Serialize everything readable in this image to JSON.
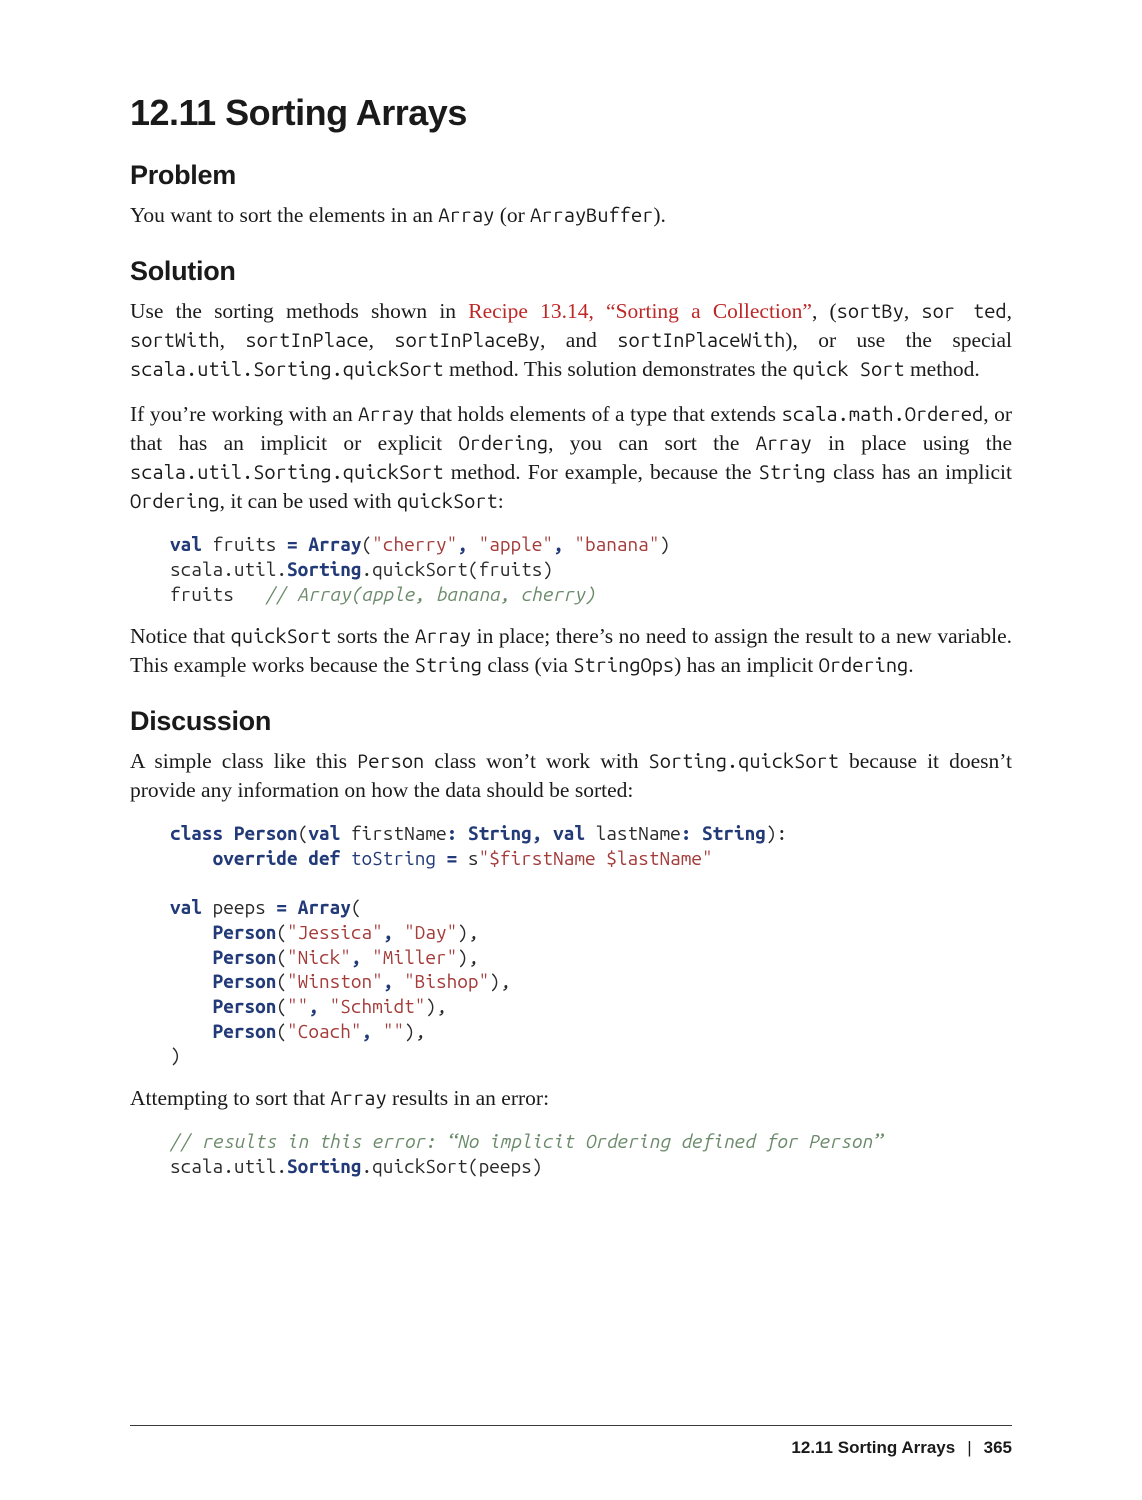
{
  "headings": {
    "main": "12.11 Sorting Arrays",
    "problem": "Problem",
    "solution": "Solution",
    "discussion": "Discussion"
  },
  "problem": {
    "p1_pre": "You want to sort the elements in an ",
    "p1_code1": "Array",
    "p1_mid": " (or ",
    "p1_code2": "ArrayBuffer",
    "p1_post": ")."
  },
  "solution": {
    "p1_a": "Use the sorting methods shown in ",
    "p1_link": "Recipe 13.14, “Sorting a Collection”",
    "p1_b": ", (",
    "p1_c1": "sortBy",
    "p1_c2": ", ",
    "p1_c3": "sor ted",
    "p1_c4": ", ",
    "p1_c5": "sortWith",
    "p1_c6": ", ",
    "p1_c7": "sortInPlace",
    "p1_c8": ", ",
    "p1_c9": "sortInPlaceBy",
    "p1_c10": ", and ",
    "p1_c11": "sortInPlaceWith",
    "p1_d": "), or use the spe­cial ",
    "p1_c12": "scala.util.Sorting.quickSort",
    "p1_e": " method. This solution demonstrates the ",
    "p1_c13": "quick Sort",
    "p1_f": " method.",
    "p2_a": "If you’re working with an ",
    "p2_c1": "Array",
    "p2_b": " that holds elements of a type that extends ",
    "p2_c2": "scala.math.Ordered",
    "p2_c": ", or that has an implicit or explicit ",
    "p2_c3": "Ordering",
    "p2_d": ", you can sort the ",
    "p2_c4": "Array",
    "p2_e": " in place using the ",
    "p2_c5": "scala.util.Sorting.quickSort",
    "p2_f": " method. For example, because the ",
    "p2_c6": "String",
    "p2_g": " class has an implicit ",
    "p2_c7": "Ordering",
    "p2_h": ", it can be used with ",
    "p2_c8": "quickSort",
    "p2_i": ":",
    "p3_a": "Notice that ",
    "p3_c1": "quickSort",
    "p3_b": " sorts the ",
    "p3_c2": "Array",
    "p3_c": " in place; there’s no need to assign the result to a new variable. This example works because the ",
    "p3_c3": "String",
    "p3_d": " class (via ",
    "p3_c4": "StringOps",
    "p3_e": ") has an implicit ",
    "p3_c5": "Ordering",
    "p3_f": "."
  },
  "discussion": {
    "p1_a": "A simple class like this ",
    "p1_c1": "Person",
    "p1_b": " class won’t work with ",
    "p1_c2": "Sorting.quickSort",
    "p1_c": " because it doesn’t provide any information on how the data should be sorted:",
    "p2_a": "Attempting to sort that ",
    "p2_c1": "Array",
    "p2_b": " results in an error:"
  },
  "code": {
    "block1": {
      "l1_kw1": "val",
      "l1_sp1": " fruits ",
      "l1_pu1": "=",
      "l1_sp2": " ",
      "l1_tp1": "Array",
      "l1_op": "(",
      "l1_s1": "\"cherry\"",
      "l1_c1": ",",
      "l1_sp3": " ",
      "l1_s2": "\"apple\"",
      "l1_c2": ",",
      "l1_sp4": " ",
      "l1_s3": "\"banana\"",
      "l1_cp": ")",
      "l2_a": "scala.util.",
      "l2_b": "Sorting",
      "l2_c": ".quickSort(fruits)",
      "l3_a": "fruits   ",
      "l3_cm": "// Array(apple, banana, cherry)"
    },
    "block2": {
      "l1_kw1": "class",
      "l1_sp1": " ",
      "l1_tp1": "Person",
      "l1_op": "(",
      "l1_kw2": "val",
      "l1_sp2": " firstName",
      "l1_pu1": ":",
      "l1_sp3": " ",
      "l1_tp2": "String",
      "l1_pu2": ",",
      "l1_sp4": " ",
      "l1_kw3": "val",
      "l1_sp5": " lastName",
      "l1_pu3": ":",
      "l1_sp6": " ",
      "l1_tp3": "String",
      "l1_cp": "):",
      "l2_indent": "    ",
      "l2_kw1": "override",
      "l2_sp1": " ",
      "l2_kw2": "def",
      "l2_sp2": " ",
      "l2_fn": "toString",
      "l2_sp3": " ",
      "l2_pu1": "=",
      "l2_sp4": " s",
      "l2_s1": "\"$firstName $lastName\"",
      "l4_kw1": "val",
      "l4_sp1": " peeps ",
      "l4_pu1": "=",
      "l4_sp2": " ",
      "l4_tp1": "Array",
      "l4_op": "(",
      "row_indent": "    ",
      "row_tp": "Person",
      "row_op": "(",
      "row_cp_c": "),",
      "r1_s1": "\"Jessica\"",
      "r1_c": ",",
      "r1_sp": " ",
      "r1_s2": "\"Day\"",
      "r2_s1": "\"Nick\"",
      "r2_s2": "\"Miller\"",
      "r3_s1": "\"Winston\"",
      "r3_s2": "\"Bishop\"",
      "r4_s1": "\"\"",
      "r4_s2": "\"Schmidt\"",
      "r5_s1": "\"Coach\"",
      "r5_s2": "\"\"",
      "close": ")"
    },
    "block3": {
      "l1_cm": "// results in this error: “No implicit Ordering defined for Person”",
      "l2_a": "scala.util.",
      "l2_b": "Sorting",
      "l2_c": ".quickSort(peeps)"
    }
  },
  "footer": {
    "section": "12.11 Sorting Arrays",
    "sep": "|",
    "page": "365"
  },
  "colors": {
    "text": "#1a1a1a",
    "link": "#bd2827",
    "keyword": "#223a77",
    "string": "#a33b39",
    "comment": "#6a8a6a",
    "rule": "#3a3a3a",
    "background": "#ffffff"
  },
  "typography": {
    "main_heading_pt": 36,
    "section_heading_pt": 27,
    "body_pt": 21.5,
    "code_pt": 19,
    "footer_pt": 17
  }
}
